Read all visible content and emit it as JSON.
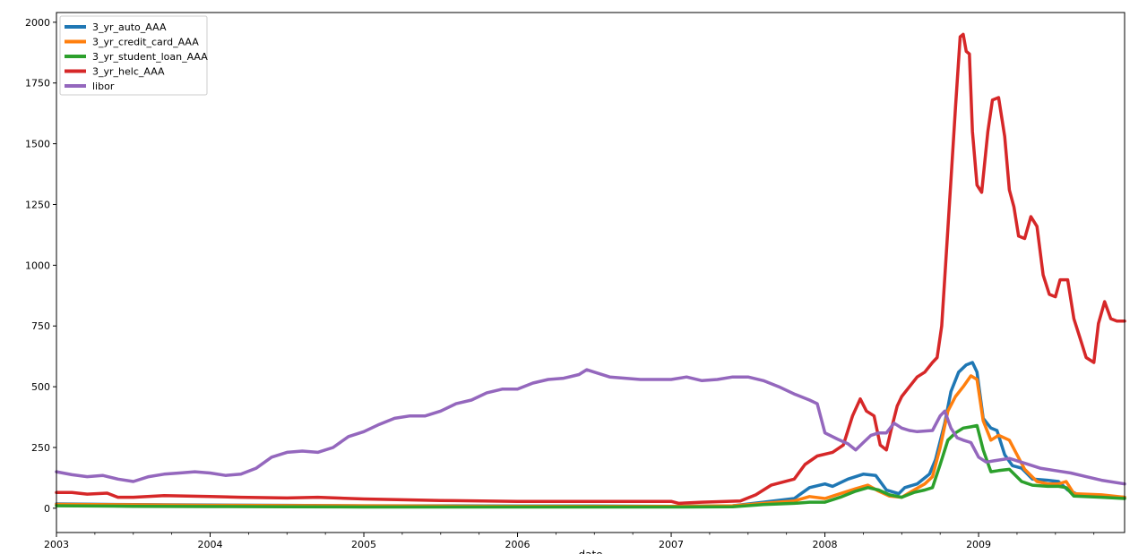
{
  "chart_data": {
    "type": "line",
    "title": "",
    "xlabel": "date",
    "ylabel": "",
    "xlim": [
      2003.0,
      2009.95
    ],
    "ylim": [
      -100,
      2040
    ],
    "x_ticks": [
      2003,
      2004,
      2005,
      2006,
      2007,
      2008,
      2009
    ],
    "x_tick_labels": [
      "2003",
      "2004",
      "2005",
      "2006",
      "2007",
      "2008",
      "2009"
    ],
    "y_ticks": [
      0,
      250,
      500,
      750,
      1000,
      1250,
      1500,
      1750,
      2000
    ],
    "y_tick_labels": [
      "0",
      "250",
      "500",
      "750",
      "1000",
      "1250",
      "1500",
      "1750",
      "2000"
    ],
    "grid": false,
    "legend_position": "top-left",
    "series": [
      {
        "name": "3_yr_auto_AAA",
        "color": "#1f77b4",
        "x": [
          2003.0,
          2003.5,
          2004.0,
          2004.5,
          2005.0,
          2005.5,
          2006.0,
          2006.5,
          2007.0,
          2007.4,
          2007.6,
          2007.8,
          2007.9,
          2008.0,
          2008.05,
          2008.15,
          2008.25,
          2008.33,
          2008.4,
          2008.48,
          2008.52,
          2008.6,
          2008.68,
          2008.72,
          2008.78,
          2008.82,
          2008.87,
          2008.92,
          2008.96,
          2008.99,
          2009.03,
          2009.08,
          2009.12,
          2009.17,
          2009.22,
          2009.28,
          2009.35,
          2009.45,
          2009.52,
          2009.58,
          2009.65,
          2009.8,
          2009.95
        ],
        "y": [
          18,
          15,
          13,
          12,
          10,
          10,
          9,
          9,
          8,
          10,
          25,
          40,
          85,
          100,
          90,
          120,
          140,
          135,
          75,
          60,
          85,
          100,
          140,
          200,
          350,
          480,
          560,
          590,
          600,
          560,
          370,
          330,
          320,
          220,
          175,
          165,
          120,
          115,
          110,
          75,
          55,
          50,
          45
        ]
      },
      {
        "name": "3_yr_credit_card_AAA",
        "color": "#ff7f0e",
        "x": [
          2003.0,
          2003.5,
          2004.0,
          2004.5,
          2005.0,
          2005.5,
          2006.0,
          2006.5,
          2007.0,
          2007.4,
          2007.6,
          2007.8,
          2007.9,
          2008.0,
          2008.1,
          2008.2,
          2008.28,
          2008.35,
          2008.42,
          2008.5,
          2008.58,
          2008.65,
          2008.7,
          2008.75,
          2008.8,
          2008.85,
          2008.9,
          2008.95,
          2008.99,
          2009.03,
          2009.08,
          2009.13,
          2009.2,
          2009.3,
          2009.38,
          2009.45,
          2009.52,
          2009.57,
          2009.62,
          2009.8,
          2009.95
        ],
        "y": [
          16,
          14,
          12,
          11,
          10,
          9,
          8,
          8,
          8,
          10,
          20,
          30,
          48,
          40,
          60,
          80,
          95,
          70,
          50,
          45,
          75,
          100,
          130,
          250,
          400,
          460,
          500,
          545,
          530,
          360,
          280,
          300,
          280,
          160,
          110,
          100,
          100,
          110,
          60,
          55,
          45
        ]
      },
      {
        "name": "3_yr_student_loan_AAA",
        "color": "#2ca02c",
        "x": [
          2003.0,
          2003.5,
          2004.0,
          2004.5,
          2005.0,
          2005.5,
          2006.0,
          2006.5,
          2007.0,
          2007.4,
          2007.6,
          2007.8,
          2007.9,
          2008.0,
          2008.1,
          2008.2,
          2008.28,
          2008.35,
          2008.42,
          2008.5,
          2008.58,
          2008.65,
          2008.7,
          2008.75,
          2008.8,
          2008.85,
          2008.9,
          2008.95,
          2008.99,
          2009.03,
          2009.08,
          2009.13,
          2009.2,
          2009.28,
          2009.35,
          2009.45,
          2009.52,
          2009.57,
          2009.62,
          2009.8,
          2009.95
        ],
        "y": [
          10,
          8,
          7,
          6,
          5,
          5,
          5,
          5,
          5,
          6,
          15,
          20,
          25,
          25,
          45,
          70,
          85,
          75,
          55,
          45,
          65,
          75,
          85,
          180,
          280,
          310,
          330,
          335,
          340,
          240,
          150,
          155,
          160,
          110,
          95,
          90,
          90,
          85,
          50,
          45,
          40
        ]
      },
      {
        "name": "3_yr_helc_AAA",
        "color": "#d62728",
        "x": [
          2003.0,
          2003.1,
          2003.2,
          2003.33,
          2003.4,
          2003.5,
          2003.7,
          2004.0,
          2004.2,
          2004.5,
          2004.7,
          2005.0,
          2005.5,
          2006.0,
          2006.5,
          2007.0,
          2007.05,
          2007.2,
          2007.45,
          2007.55,
          2007.65,
          2007.8,
          2007.87,
          2007.95,
          2008.05,
          2008.12,
          2008.18,
          2008.23,
          2008.27,
          2008.32,
          2008.36,
          2008.4,
          2008.43,
          2008.47,
          2008.5,
          2008.55,
          2008.6,
          2008.65,
          2008.7,
          2008.73,
          2008.76,
          2008.8,
          2008.85,
          2008.88,
          2008.9,
          2008.92,
          2008.94,
          2008.96,
          2008.99,
          2009.02,
          2009.06,
          2009.09,
          2009.13,
          2009.17,
          2009.2,
          2009.23,
          2009.26,
          2009.3,
          2009.34,
          2009.38,
          2009.42,
          2009.46,
          2009.5,
          2009.53,
          2009.58,
          2009.62,
          2009.66,
          2009.7,
          2009.75,
          2009.78,
          2009.82,
          2009.86,
          2009.9,
          2009.95
        ],
        "y": [
          65,
          65,
          58,
          62,
          45,
          45,
          52,
          48,
          45,
          42,
          45,
          38,
          32,
          28,
          28,
          28,
          20,
          25,
          30,
          55,
          95,
          120,
          180,
          215,
          230,
          260,
          380,
          450,
          400,
          380,
          260,
          240,
          320,
          420,
          460,
          500,
          540,
          560,
          600,
          620,
          750,
          1150,
          1650,
          1940,
          1950,
          1880,
          1870,
          1550,
          1330,
          1300,
          1550,
          1680,
          1690,
          1530,
          1310,
          1240,
          1120,
          1110,
          1200,
          1160,
          960,
          880,
          870,
          940,
          940,
          780,
          700,
          620,
          600,
          760,
          850,
          780,
          770,
          770
        ]
      },
      {
        "name": "libor",
        "color": "#9467bd",
        "x": [
          2003.0,
          2003.1,
          2003.2,
          2003.3,
          2003.4,
          2003.5,
          2003.6,
          2003.7,
          2003.8,
          2003.9,
          2004.0,
          2004.1,
          2004.2,
          2004.3,
          2004.4,
          2004.5,
          2004.6,
          2004.7,
          2004.8,
          2004.9,
          2005.0,
          2005.1,
          2005.2,
          2005.3,
          2005.4,
          2005.5,
          2005.6,
          2005.7,
          2005.8,
          2005.9,
          2006.0,
          2006.1,
          2006.2,
          2006.3,
          2006.4,
          2006.45,
          2006.5,
          2006.6,
          2006.7,
          2006.8,
          2006.9,
          2007.0,
          2007.1,
          2007.2,
          2007.3,
          2007.4,
          2007.5,
          2007.6,
          2007.7,
          2007.8,
          2007.9,
          2007.95,
          2008.0,
          2008.08,
          2008.15,
          2008.2,
          2008.25,
          2008.3,
          2008.35,
          2008.4,
          2008.45,
          2008.5,
          2008.55,
          2008.6,
          2008.7,
          2008.75,
          2008.78,
          2008.82,
          2008.86,
          2008.9,
          2008.95,
          2009.0,
          2009.05,
          2009.1,
          2009.2,
          2009.3,
          2009.4,
          2009.5,
          2009.6,
          2009.7,
          2009.8,
          2009.95
        ],
        "y": [
          150,
          138,
          130,
          135,
          120,
          110,
          130,
          140,
          145,
          150,
          145,
          135,
          140,
          165,
          210,
          230,
          235,
          230,
          250,
          295,
          315,
          345,
          370,
          380,
          380,
          400,
          430,
          445,
          475,
          490,
          490,
          515,
          530,
          535,
          550,
          570,
          560,
          540,
          535,
          530,
          530,
          530,
          540,
          525,
          530,
          540,
          540,
          525,
          500,
          470,
          445,
          430,
          310,
          285,
          265,
          240,
          270,
          300,
          310,
          310,
          350,
          330,
          320,
          315,
          320,
          380,
          400,
          330,
          290,
          280,
          270,
          210,
          190,
          195,
          205,
          185,
          165,
          155,
          145,
          130,
          115,
          100
        ]
      }
    ]
  }
}
